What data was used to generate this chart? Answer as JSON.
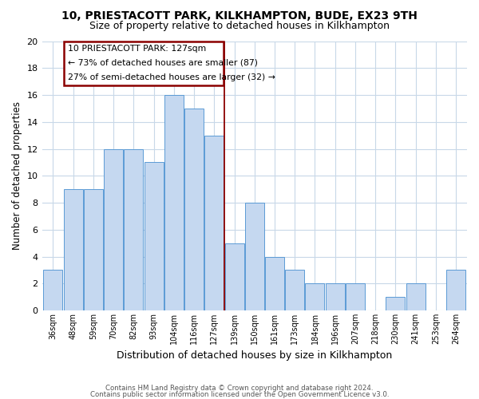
{
  "title": "10, PRIESTACOTT PARK, KILKHAMPTON, BUDE, EX23 9TH",
  "subtitle": "Size of property relative to detached houses in Kilkhampton",
  "xlabel": "Distribution of detached houses by size in Kilkhampton",
  "ylabel": "Number of detached properties",
  "footer_line1": "Contains HM Land Registry data © Crown copyright and database right 2024.",
  "footer_line2": "Contains public sector information licensed under the Open Government Licence v3.0.",
  "categories": [
    "36sqm",
    "48sqm",
    "59sqm",
    "70sqm",
    "82sqm",
    "93sqm",
    "104sqm",
    "116sqm",
    "127sqm",
    "139sqm",
    "150sqm",
    "161sqm",
    "173sqm",
    "184sqm",
    "196sqm",
    "207sqm",
    "218sqm",
    "230sqm",
    "241sqm",
    "253sqm",
    "264sqm"
  ],
  "values": [
    3,
    9,
    9,
    12,
    12,
    11,
    16,
    15,
    13,
    5,
    8,
    4,
    3,
    2,
    2,
    2,
    0,
    1,
    2,
    0,
    3
  ],
  "bar_color": "#c5d8f0",
  "bar_edge_color": "#5b9bd5",
  "highlight_index": 8,
  "highlight_line_color": "#8b0000",
  "annotation_text_line1": "10 PRIESTACOTT PARK: 127sqm",
  "annotation_text_line2": "← 73% of detached houses are smaller (87)",
  "annotation_text_line3": "27% of semi-detached houses are larger (32) →",
  "annotation_box_color": "#8b0000",
  "annotation_fill_color": "#ffffff",
  "bg_color": "#ffffff",
  "grid_color": "#c8d8e8",
  "ylim": [
    0,
    20
  ],
  "yticks": [
    0,
    2,
    4,
    6,
    8,
    10,
    12,
    14,
    16,
    18,
    20
  ]
}
